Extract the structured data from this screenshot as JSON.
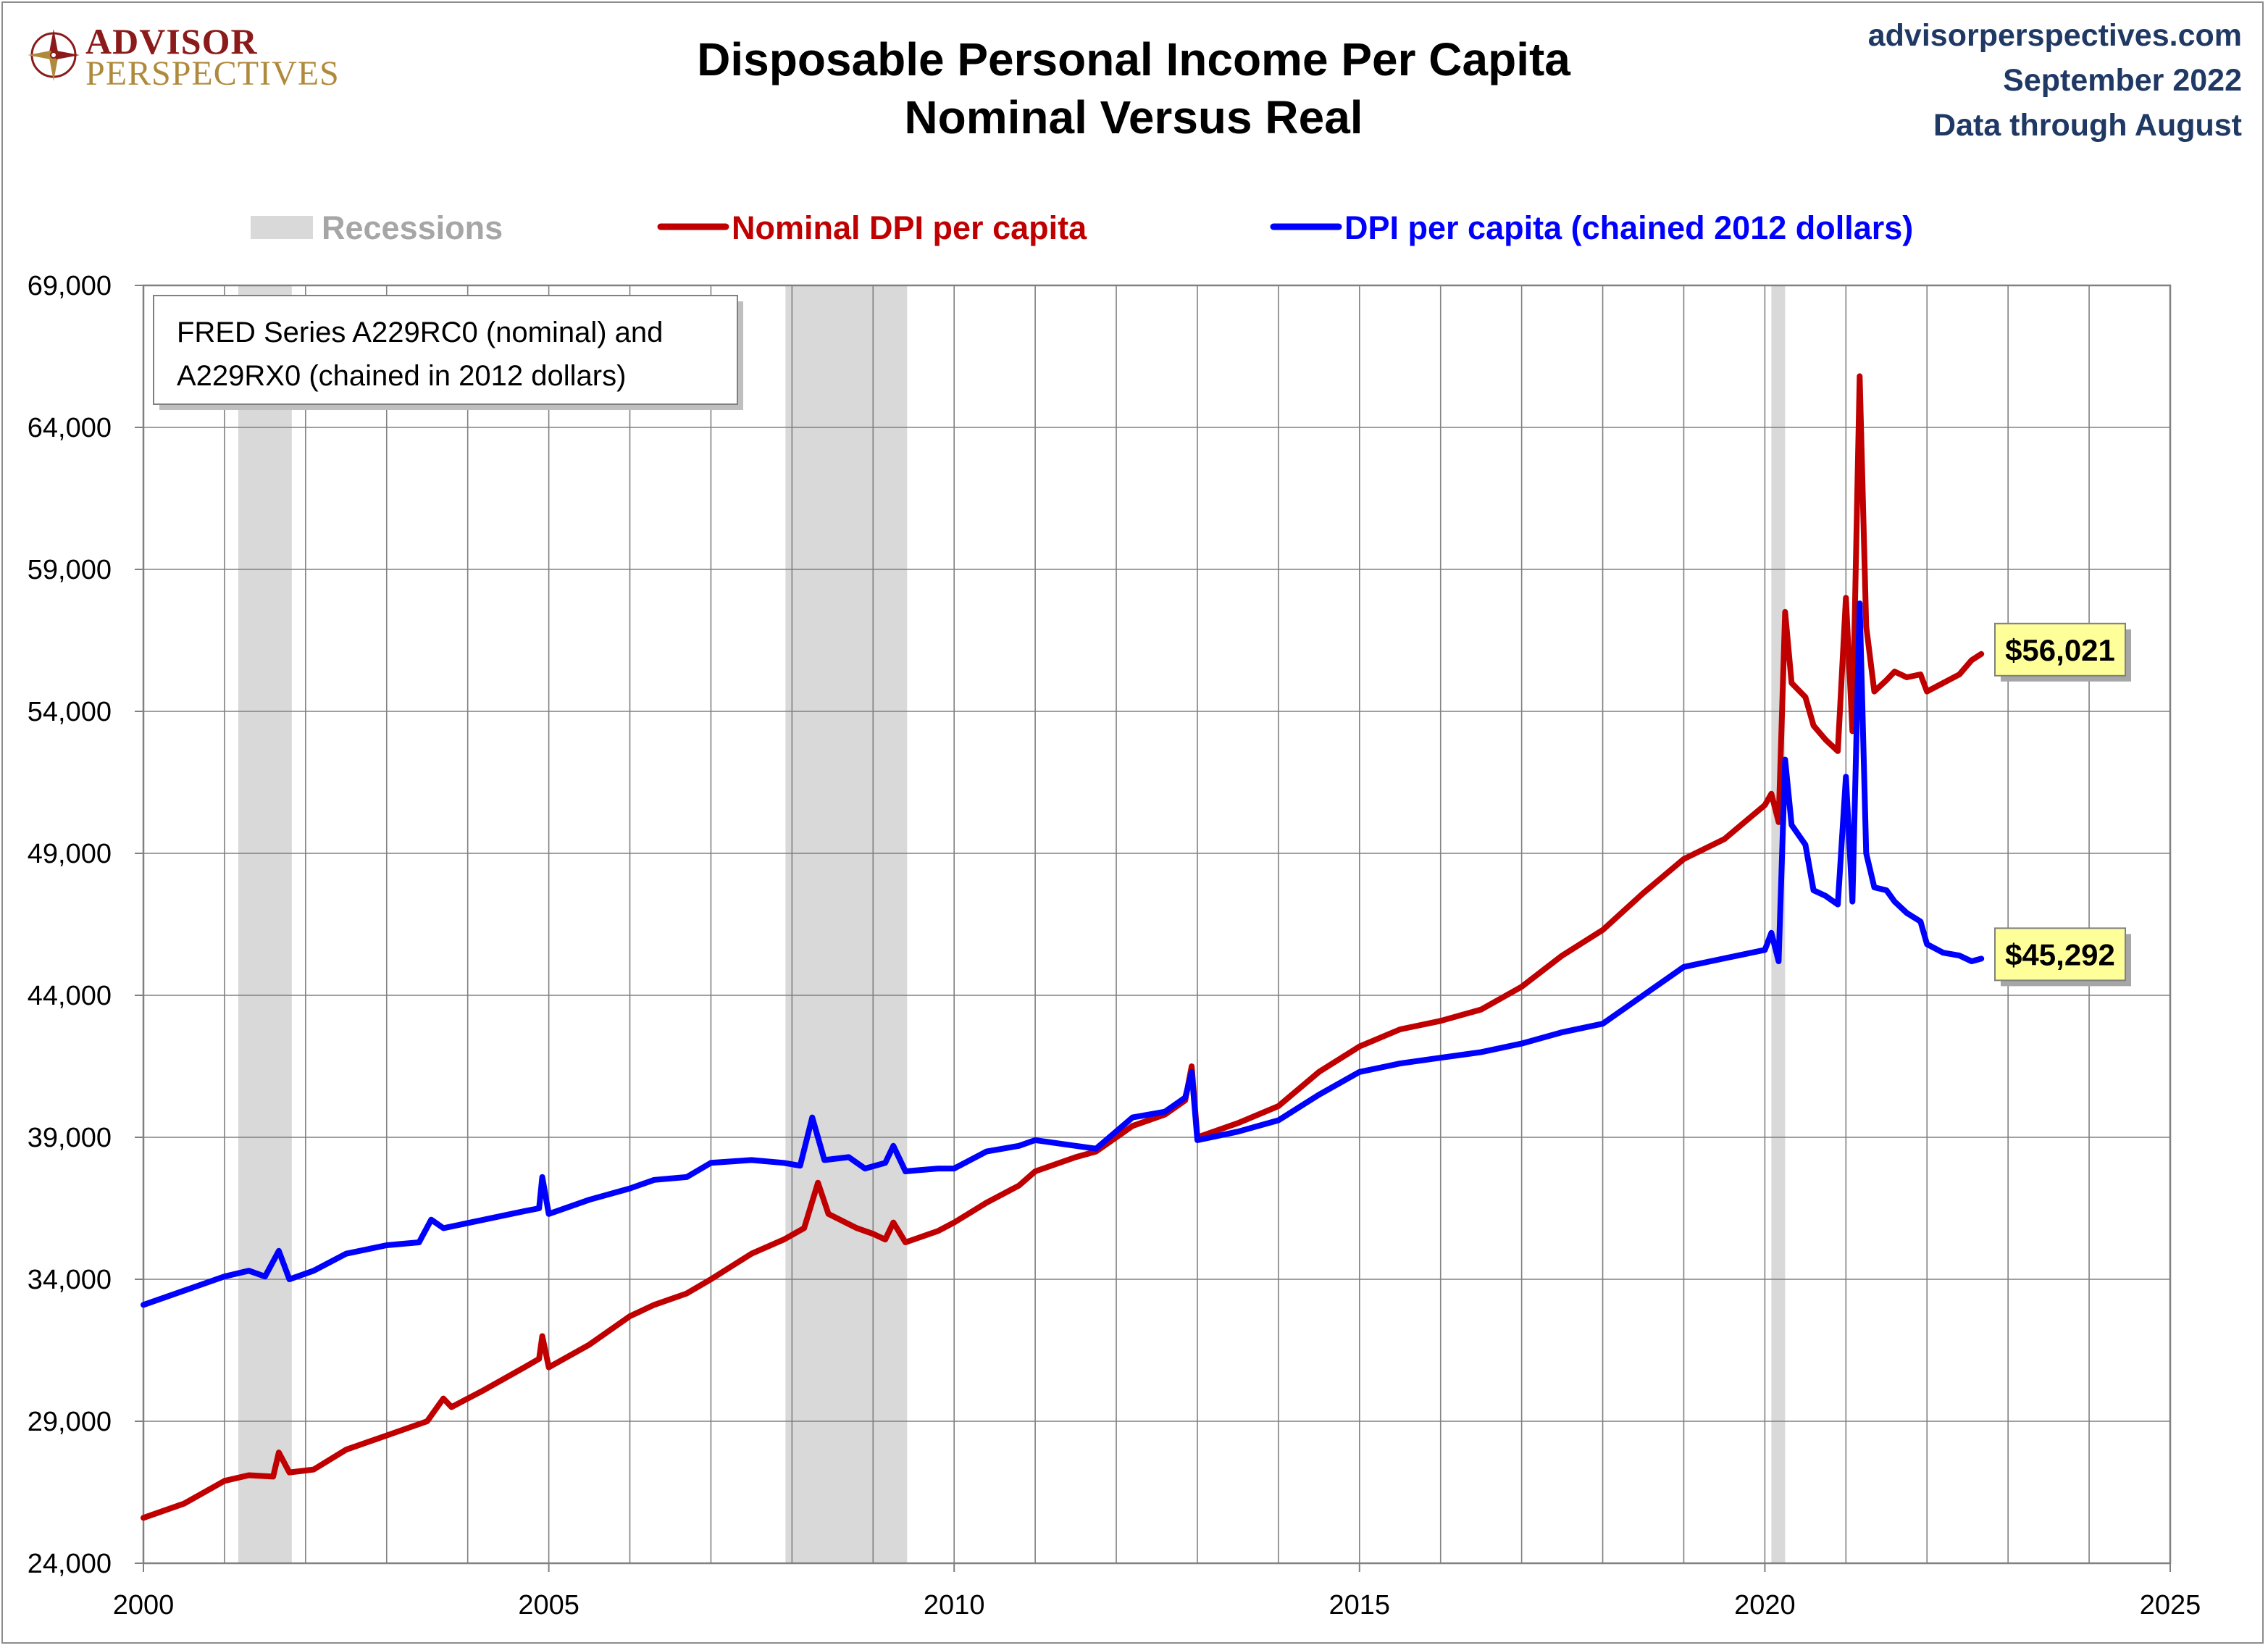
{
  "header": {
    "logo_line1": "ADVISOR",
    "logo_line2": "PERSPECTIVES",
    "title_line1": "Disposable Personal Income Per Capita",
    "title_line2": "Nominal Versus Real",
    "site": "advisorperspectives.com",
    "date": "September 2022",
    "data_through": "Data through August"
  },
  "colors": {
    "nominal": "#c00000",
    "real": "#0000ff",
    "recession": "#d9d9d9",
    "grid": "#808080",
    "meta_text": "#1f3864",
    "logo_red": "#8b1a1a",
    "logo_gold": "#b08a3c",
    "end_label_bg": "#ffff99"
  },
  "annotation": {
    "line1": "FRED Series A229RC0 (nominal) and",
    "line2": "A229RX0 (chained in 2012 dollars)"
  },
  "chart_data": {
    "type": "line",
    "title": "Disposable Personal Income Per Capita Nominal Versus Real",
    "xlim": [
      2000,
      2025
    ],
    "ylim": [
      24000,
      69000
    ],
    "x_ticks": [
      "2000",
      "2005",
      "2010",
      "2015",
      "2020",
      "2025"
    ],
    "y_ticks": [
      "24,000",
      "29,000",
      "34,000",
      "39,000",
      "44,000",
      "49,000",
      "54,000",
      "59,000",
      "64,000",
      "69,000"
    ],
    "grid": true,
    "legend_position": "top",
    "legend": [
      {
        "label": "Recessions",
        "kind": "band"
      },
      {
        "label": "Nominal DPI per capita",
        "kind": "line",
        "series": 0
      },
      {
        "label": "DPI per capita (chained 2012 dollars)",
        "kind": "line",
        "series": 1
      }
    ],
    "recessions": [
      [
        2001.17,
        2001.83
      ],
      [
        2007.92,
        2009.42
      ],
      [
        2020.08,
        2020.25
      ]
    ],
    "series": [
      {
        "name": "Nominal DPI per capita",
        "end_label": "$56,021",
        "points": [
          [
            2000.0,
            25600
          ],
          [
            2000.5,
            26100
          ],
          [
            2001.0,
            26900
          ],
          [
            2001.3,
            27100
          ],
          [
            2001.6,
            27050
          ],
          [
            2001.67,
            27900
          ],
          [
            2001.8,
            27200
          ],
          [
            2002.1,
            27300
          ],
          [
            2002.5,
            28000
          ],
          [
            2003.0,
            28500
          ],
          [
            2003.5,
            29000
          ],
          [
            2003.7,
            29800
          ],
          [
            2003.8,
            29500
          ],
          [
            2004.2,
            30100
          ],
          [
            2004.7,
            30900
          ],
          [
            2004.88,
            31200
          ],
          [
            2004.92,
            32000
          ],
          [
            2005.0,
            30900
          ],
          [
            2005.5,
            31700
          ],
          [
            2006.0,
            32700
          ],
          [
            2006.3,
            33100
          ],
          [
            2006.7,
            33500
          ],
          [
            2007.0,
            34000
          ],
          [
            2007.5,
            34900
          ],
          [
            2007.9,
            35400
          ],
          [
            2008.15,
            35800
          ],
          [
            2008.32,
            37400
          ],
          [
            2008.45,
            36300
          ],
          [
            2008.8,
            35800
          ],
          [
            2009.0,
            35600
          ],
          [
            2009.15,
            35400
          ],
          [
            2009.25,
            36000
          ],
          [
            2009.4,
            35300
          ],
          [
            2009.8,
            35700
          ],
          [
            2010.0,
            36000
          ],
          [
            2010.4,
            36700
          ],
          [
            2010.8,
            37300
          ],
          [
            2011.0,
            37800
          ],
          [
            2011.5,
            38300
          ],
          [
            2011.75,
            38500
          ],
          [
            2012.2,
            39400
          ],
          [
            2012.6,
            39800
          ],
          [
            2012.85,
            40300
          ],
          [
            2012.93,
            41500
          ],
          [
            2013.0,
            39000
          ],
          [
            2013.5,
            39500
          ],
          [
            2014.0,
            40100
          ],
          [
            2014.5,
            41300
          ],
          [
            2015.0,
            42200
          ],
          [
            2015.5,
            42800
          ],
          [
            2016.0,
            43100
          ],
          [
            2016.5,
            43500
          ],
          [
            2017.0,
            44300
          ],
          [
            2017.5,
            45400
          ],
          [
            2018.0,
            46300
          ],
          [
            2018.5,
            47600
          ],
          [
            2019.0,
            48800
          ],
          [
            2019.5,
            49500
          ],
          [
            2020.0,
            50700
          ],
          [
            2020.08,
            51100
          ],
          [
            2020.17,
            50100
          ],
          [
            2020.25,
            57500
          ],
          [
            2020.33,
            55000
          ],
          [
            2020.5,
            54500
          ],
          [
            2020.6,
            53500
          ],
          [
            2020.75,
            53000
          ],
          [
            2020.9,
            52600
          ],
          [
            2021.0,
            58000
          ],
          [
            2021.08,
            53300
          ],
          [
            2021.17,
            65800
          ],
          [
            2021.25,
            57000
          ],
          [
            2021.35,
            54700
          ],
          [
            2021.5,
            55100
          ],
          [
            2021.6,
            55400
          ],
          [
            2021.75,
            55200
          ],
          [
            2021.92,
            55300
          ],
          [
            2022.0,
            54700
          ],
          [
            2022.2,
            55000
          ],
          [
            2022.4,
            55300
          ],
          [
            2022.55,
            55800
          ],
          [
            2022.67,
            56021
          ]
        ]
      },
      {
        "name": "DPI per capita (chained 2012 dollars)",
        "end_label": "$45,292",
        "points": [
          [
            2000.0,
            33100
          ],
          [
            2000.5,
            33600
          ],
          [
            2001.0,
            34100
          ],
          [
            2001.3,
            34300
          ],
          [
            2001.5,
            34100
          ],
          [
            2001.67,
            35000
          ],
          [
            2001.8,
            34000
          ],
          [
            2002.1,
            34300
          ],
          [
            2002.5,
            34900
          ],
          [
            2003.0,
            35200
          ],
          [
            2003.4,
            35300
          ],
          [
            2003.55,
            36100
          ],
          [
            2003.7,
            35800
          ],
          [
            2004.2,
            36100
          ],
          [
            2004.7,
            36400
          ],
          [
            2004.88,
            36500
          ],
          [
            2004.92,
            37600
          ],
          [
            2005.0,
            36300
          ],
          [
            2005.5,
            36800
          ],
          [
            2006.0,
            37200
          ],
          [
            2006.3,
            37500
          ],
          [
            2006.7,
            37600
          ],
          [
            2007.0,
            38100
          ],
          [
            2007.5,
            38200
          ],
          [
            2007.9,
            38100
          ],
          [
            2008.1,
            38000
          ],
          [
            2008.25,
            39700
          ],
          [
            2008.4,
            38200
          ],
          [
            2008.7,
            38300
          ],
          [
            2008.9,
            37900
          ],
          [
            2009.15,
            38100
          ],
          [
            2009.25,
            38700
          ],
          [
            2009.4,
            37800
          ],
          [
            2009.8,
            37900
          ],
          [
            2010.0,
            37900
          ],
          [
            2010.4,
            38500
          ],
          [
            2010.8,
            38700
          ],
          [
            2011.0,
            38900
          ],
          [
            2011.5,
            38700
          ],
          [
            2011.75,
            38600
          ],
          [
            2012.2,
            39700
          ],
          [
            2012.6,
            39900
          ],
          [
            2012.85,
            40400
          ],
          [
            2012.93,
            41300
          ],
          [
            2013.0,
            38900
          ],
          [
            2013.5,
            39200
          ],
          [
            2014.0,
            39600
          ],
          [
            2014.5,
            40500
          ],
          [
            2015.0,
            41300
          ],
          [
            2015.5,
            41600
          ],
          [
            2016.0,
            41800
          ],
          [
            2016.5,
            42000
          ],
          [
            2017.0,
            42300
          ],
          [
            2017.5,
            42700
          ],
          [
            2018.0,
            43000
          ],
          [
            2018.5,
            44000
          ],
          [
            2019.0,
            45000
          ],
          [
            2019.5,
            45300
          ],
          [
            2020.0,
            45600
          ],
          [
            2020.08,
            46200
          ],
          [
            2020.17,
            45200
          ],
          [
            2020.25,
            52300
          ],
          [
            2020.33,
            50000
          ],
          [
            2020.5,
            49300
          ],
          [
            2020.6,
            47700
          ],
          [
            2020.75,
            47500
          ],
          [
            2020.9,
            47200
          ],
          [
            2021.0,
            51700
          ],
          [
            2021.08,
            47300
          ],
          [
            2021.17,
            57800
          ],
          [
            2021.25,
            49000
          ],
          [
            2021.35,
            47800
          ],
          [
            2021.5,
            47700
          ],
          [
            2021.6,
            47300
          ],
          [
            2021.75,
            46900
          ],
          [
            2021.92,
            46600
          ],
          [
            2022.0,
            45800
          ],
          [
            2022.2,
            45500
          ],
          [
            2022.4,
            45400
          ],
          [
            2022.55,
            45200
          ],
          [
            2022.67,
            45292
          ]
        ]
      }
    ]
  }
}
